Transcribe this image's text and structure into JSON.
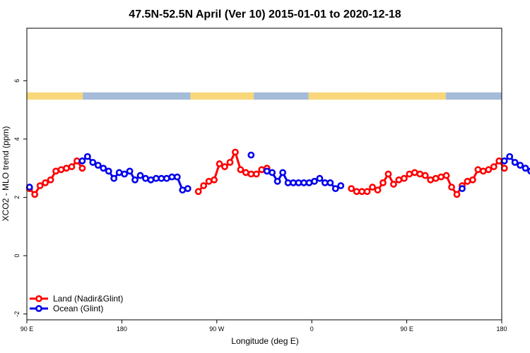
{
  "chart_data": {
    "type": "line",
    "title": "47.5N-52.5N April (Ver 10)   2015-01-01 to 2020-12-18",
    "xlabel": "Longitude (deg E)",
    "ylabel": "XCO2 - MLO trend (ppm)",
    "x_ticks": [
      "90 E",
      "180",
      "90 W",
      "0",
      "90 E",
      "180"
    ],
    "y_ticks": [
      "-2",
      "0",
      "2",
      "4",
      "6"
    ],
    "y_tick_values": [
      -2,
      0,
      2,
      4,
      6
    ],
    "ylim": [
      -2.2,
      7.8
    ],
    "grid": false,
    "legend_position": "bottom-left",
    "land_ocean_band": {
      "y_range": [
        5.35,
        5.6
      ],
      "land_color": "#f8d77a",
      "ocean_color": "#a5bcd9",
      "segments": [
        {
          "type": "land",
          "x": [
            90,
            143
          ]
        },
        {
          "type": "ocean",
          "x": [
            143,
            245
          ]
        },
        {
          "type": "land",
          "x": [
            245,
            305
          ]
        },
        {
          "type": "ocean",
          "x": [
            305,
            357
          ]
        },
        {
          "type": "land",
          "x": [
            357,
            400
          ]
        },
        {
          "type": "land",
          "x": [
            400,
            440
          ]
        },
        {
          "type": "land",
          "x": [
            440,
            487
          ]
        },
        {
          "type": "ocean",
          "x": [
            487,
            540
          ]
        }
      ]
    },
    "series": [
      {
        "name": "Land (Nadir&Glint)",
        "color": "#ff0000",
        "x": [
          92.5,
          97.5,
          102.5,
          107.5,
          112.5,
          117.5,
          122.5,
          127.5,
          132.5,
          137.5,
          142.5,
          null,
          252.5,
          257.5,
          262.5,
          267.5,
          272.5,
          277.5,
          282.5,
          287.5,
          292.5,
          297.5,
          302.5,
          307.5,
          312.5,
          317.5,
          null,
          397.5,
          402.5,
          407.5,
          412.5,
          417.5,
          422.5,
          427.5,
          432.5,
          437.5,
          442.5,
          447.5,
          452.5,
          457.5,
          462.5,
          467.5,
          472.5,
          477.5,
          482.5,
          487.5,
          492.5,
          497.5,
          502.5,
          507.5,
          512.5,
          517.5,
          522.5,
          527.5,
          532.5,
          537.5,
          542.5
        ],
        "y": [
          2.3,
          2.1,
          2.4,
          2.5,
          2.6,
          2.9,
          2.95,
          3.0,
          3.05,
          3.25,
          3.0,
          null,
          2.2,
          2.4,
          2.55,
          2.6,
          3.15,
          3.05,
          3.2,
          3.55,
          2.95,
          2.85,
          2.8,
          2.8,
          2.95,
          3.0,
          null,
          2.3,
          2.2,
          2.2,
          2.2,
          2.35,
          2.25,
          2.5,
          2.8,
          2.45,
          2.6,
          2.65,
          2.8,
          2.85,
          2.8,
          2.75,
          2.6,
          2.65,
          2.7,
          2.75,
          2.35,
          2.1,
          2.4,
          2.55,
          2.6,
          2.95,
          2.9,
          2.95,
          3.05,
          3.25,
          3.0
        ]
      },
      {
        "name": "Ocean (Glint)",
        "color": "#0000ee",
        "x": [
          92.5,
          null,
          142.5,
          147.5,
          152.5,
          157.5,
          162.5,
          167.5,
          172.5,
          177.5,
          182.5,
          187.5,
          192.5,
          197.5,
          202.5,
          207.5,
          212.5,
          217.5,
          222.5,
          227.5,
          232.5,
          237.5,
          242.5,
          247.5,
          252.5,
          null,
          302.5,
          null,
          317.5,
          322.5,
          327.5,
          332.5,
          337.5,
          342.5,
          347.5,
          352.5,
          357.5,
          362.5,
          367.5,
          372.5,
          377.5,
          382.5,
          387.5,
          392.5,
          397.5,
          402.5,
          407.5,
          null,
          502.5,
          null,
          542.5,
          547.5,
          552.5,
          557.5,
          562.5,
          567.5,
          572.5,
          577.5
        ],
        "y": [
          2.35,
          null,
          3.25,
          3.4,
          3.2,
          3.1,
          3.0,
          2.9,
          2.65,
          2.85,
          2.8,
          2.9,
          2.6,
          2.75,
          2.65,
          2.6,
          2.65,
          2.65,
          2.65,
          2.7,
          2.7,
          2.25,
          2.3,
          null,
          null,
          null,
          3.45,
          null,
          2.9,
          2.85,
          2.55,
          2.85,
          2.5,
          2.5,
          2.5,
          2.5,
          2.5,
          2.55,
          2.65,
          2.5,
          2.5,
          2.3,
          2.4,
          null,
          null,
          null,
          null,
          null,
          2.3,
          null,
          3.25,
          3.4,
          3.2,
          3.1,
          3.0,
          2.9,
          2.65,
          2.9
        ]
      }
    ]
  }
}
